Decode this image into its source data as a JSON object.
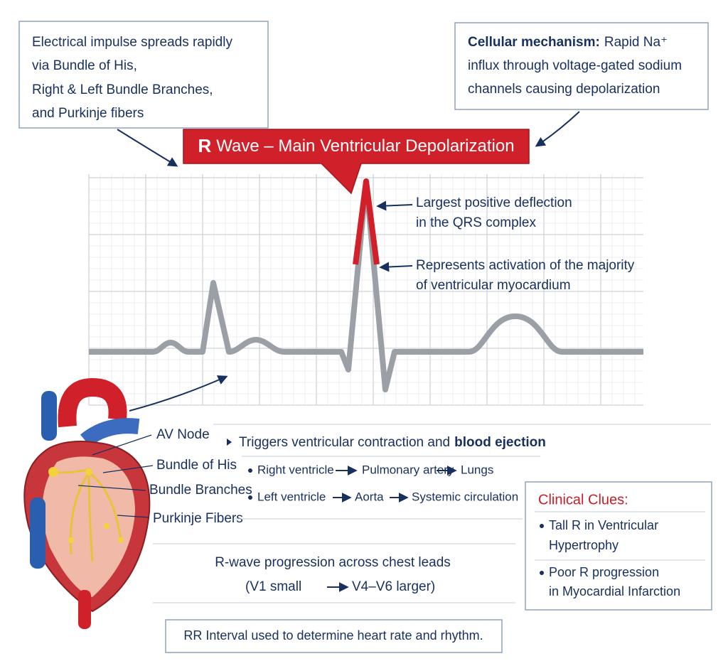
{
  "impulse_box": {
    "lines": [
      "Electrical impulse spreads rapidly",
      "via Bundle of His,",
      "Right & Left Bundle Branches,",
      "and Purkinje fibers"
    ]
  },
  "mechanism_box": {
    "heading": "Cellular mechanism:",
    "lines": [
      "Rapid Na⁺",
      "influx through voltage-gated sodium",
      "channels causing depolarization"
    ]
  },
  "banner": {
    "letter": "R",
    "text": "Wave – Main Ventricular Depolarization"
  },
  "annotations": [
    {
      "lines": [
        "Largest positive deflection",
        "in the QRS complex"
      ]
    },
    {
      "lines": [
        "Represents activation of the majority",
        "of ventricular myocardium"
      ]
    }
  ],
  "heart_labels": [
    "AV Node",
    "Bundle of His",
    "Bundle Branches",
    "Purkinje Fibers"
  ],
  "effects": {
    "lead": "Triggers ventricular contraction and",
    "lead_bold": "blood ejection",
    "pathways": [
      [
        "Right ventricle",
        "Pulmonary artery",
        "Lungs"
      ],
      [
        "Left ventricle",
        "Aorta",
        "Systemic circulation"
      ]
    ]
  },
  "progression": {
    "line": "R-wave progression across chest leads",
    "from": "(V1 small",
    "to": "V4–V6 larger)"
  },
  "clinical": {
    "title": "Clinical Clues:",
    "items": [
      {
        "lines": [
          "Tall R in Ventricular",
          "Hypertrophy"
        ]
      },
      {
        "lines": [
          "Poor R progression",
          "in Myocardial Infarction"
        ]
      }
    ]
  },
  "footer": "RR Interval used to determine heart rate and rhythm."
}
